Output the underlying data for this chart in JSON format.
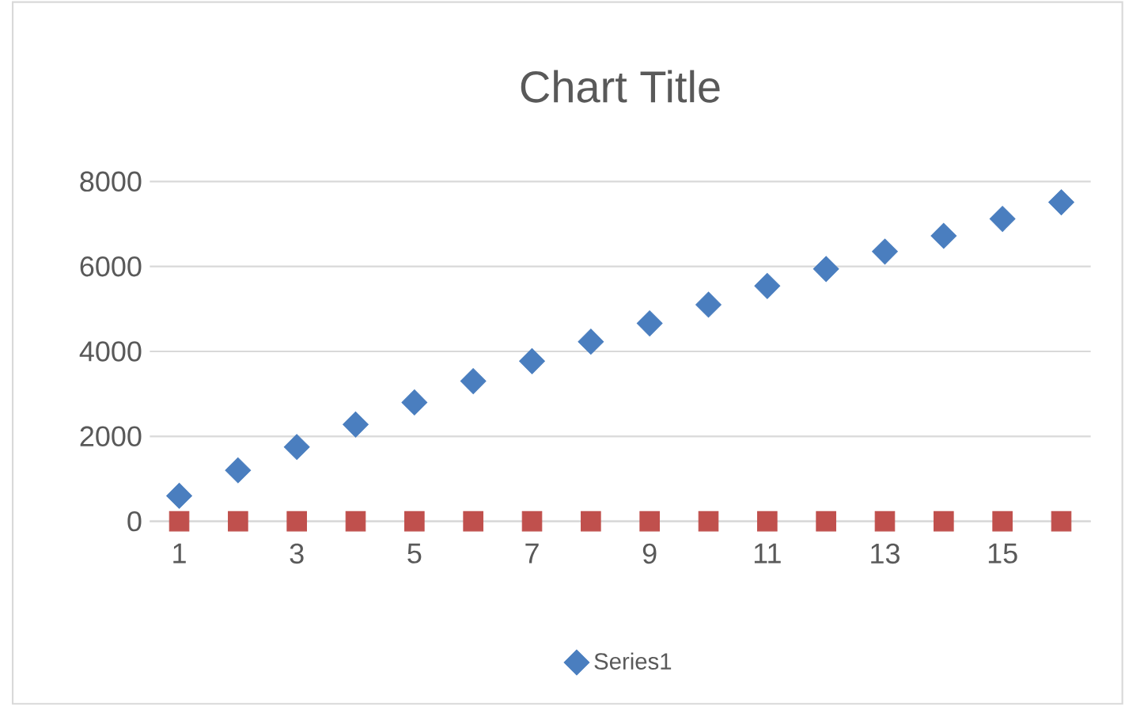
{
  "chart_data": {
    "type": "scatter",
    "title": "Chart Title",
    "categories": [
      "1",
      null,
      "3",
      null,
      "5",
      null,
      "7",
      null,
      "9",
      null,
      "11",
      null,
      "13",
      null,
      "15",
      null
    ],
    "series": [
      {
        "name": "Series1",
        "color": "#4a7ebf",
        "marker": "diamond",
        "values": [
          600,
          1200,
          1750,
          2280,
          2800,
          3300,
          3770,
          4230,
          4660,
          5100,
          5540,
          5940,
          6350,
          6720,
          7120,
          7510
        ]
      },
      {
        "color": "#c0504d",
        "marker": "square",
        "values": [
          0,
          0,
          0,
          0,
          0,
          0,
          0,
          0,
          0,
          0,
          0,
          0,
          0,
          0,
          0,
          0
        ]
      }
    ],
    "ylim": [
      0,
      8000
    ],
    "yticks": [
      0,
      2000,
      4000,
      6000,
      8000
    ],
    "grid": "y",
    "legend": "bottom"
  }
}
